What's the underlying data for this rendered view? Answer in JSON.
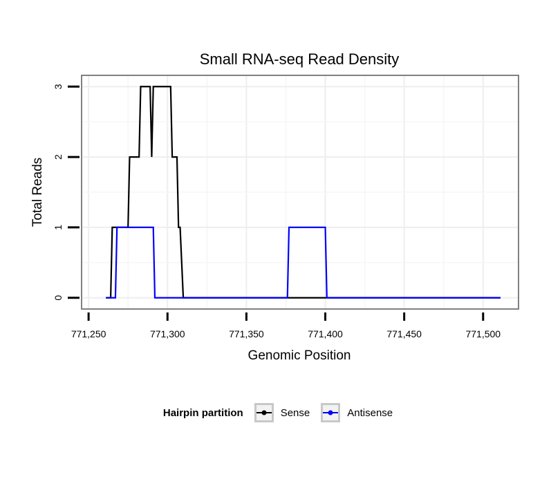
{
  "chart_data": {
    "type": "line",
    "title": "Small RNA-seq Read Density",
    "xlabel": "Genomic Position",
    "ylabel": "Total Reads",
    "xlim": [
      771246,
      771522
    ],
    "ylim": [
      -0.15,
      3.15
    ],
    "x_ticks": [
      771250,
      771300,
      771350,
      771400,
      771450,
      771500
    ],
    "x_tick_labels": [
      "771,250",
      "771,300",
      "771,350",
      "771,400",
      "771,450",
      "771,500"
    ],
    "y_ticks": [
      0,
      1,
      2,
      3
    ],
    "y_tick_labels": [
      "0",
      "1",
      "2",
      "3"
    ],
    "grid": true,
    "legend_position": "bottom",
    "legend_title": "Hairpin partition",
    "series": [
      {
        "name": "Sense",
        "color": "#000000",
        "x": [
          771261,
          771264,
          771265,
          771275,
          771276,
          771282,
          771283,
          771289,
          771290,
          771291,
          771292,
          771302,
          771303,
          771306,
          771307,
          771308,
          771309,
          771310,
          771511
        ],
        "y": [
          0,
          0,
          1,
          1,
          2,
          2,
          3,
          3,
          2,
          3,
          3,
          3,
          2,
          2,
          1,
          1,
          0.5,
          0,
          0
        ]
      },
      {
        "name": "Antisense",
        "color": "#0000ff",
        "x": [
          771261,
          771267,
          771268,
          771291,
          771292,
          771376,
          771377,
          771400,
          771401,
          771511
        ],
        "y": [
          0,
          0,
          1,
          1,
          0,
          0,
          1,
          1,
          0,
          0
        ]
      }
    ]
  }
}
